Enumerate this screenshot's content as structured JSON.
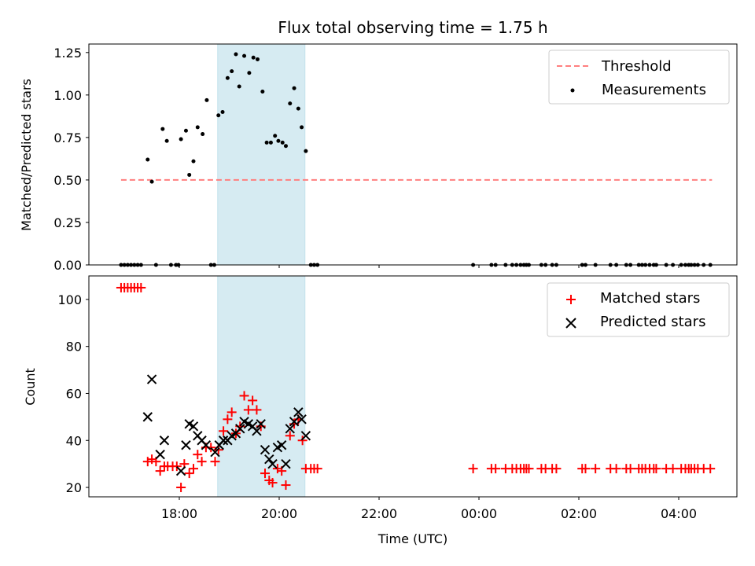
{
  "chart_data": [
    {
      "type": "scatter",
      "title": "Flux total observing time = 1.75 h",
      "ylabel": "Matched/Predicted stars",
      "xlabel": "",
      "ylim": [
        0,
        1.3
      ],
      "yticks": [
        "0.00",
        "0.25",
        "0.50",
        "0.75",
        "1.00",
        "1.25"
      ],
      "highlight_span": [
        "18:46",
        "20:31"
      ],
      "legend_position": "top-right",
      "threshold": {
        "name": "Threshold",
        "value": 0.5,
        "x_range": [
          "16:50",
          "04:40"
        ],
        "color": "#ff7f7f"
      },
      "series": [
        {
          "name": "Measurements",
          "color": "#000000",
          "points": [
            [
              "16:50",
              0
            ],
            [
              "16:54",
              0
            ],
            [
              "16:58",
              0
            ],
            [
              "17:02",
              0
            ],
            [
              "17:06",
              0
            ],
            [
              "17:10",
              0
            ],
            [
              "17:14",
              0
            ],
            [
              "17:22",
              0.62
            ],
            [
              "17:27",
              0.49
            ],
            [
              "17:40",
              0.8
            ],
            [
              "17:45",
              0.73
            ],
            [
              "18:02",
              0.74
            ],
            [
              "18:08",
              0.79
            ],
            [
              "18:12",
              0.53
            ],
            [
              "18:17",
              0.61
            ],
            [
              "18:22",
              0.81
            ],
            [
              "18:28",
              0.77
            ],
            [
              "18:33",
              0.97
            ],
            [
              "18:47",
              0.88
            ],
            [
              "18:52",
              0.9
            ],
            [
              "18:58",
              1.1
            ],
            [
              "19:03",
              1.14
            ],
            [
              "19:08",
              1.24
            ],
            [
              "19:12",
              1.05
            ],
            [
              "19:18",
              1.23
            ],
            [
              "19:24",
              1.13
            ],
            [
              "19:29",
              1.22
            ],
            [
              "19:34",
              1.21
            ],
            [
              "19:40",
              1.02
            ],
            [
              "19:45",
              0.72
            ],
            [
              "19:50",
              0.72
            ],
            [
              "19:55",
              0.76
            ],
            [
              "19:59",
              0.73
            ],
            [
              "20:04",
              0.72
            ],
            [
              "20:08",
              0.7
            ],
            [
              "20:13",
              0.95
            ],
            [
              "20:18",
              1.04
            ],
            [
              "20:23",
              0.92
            ],
            [
              "20:27",
              0.81
            ],
            [
              "20:32",
              0.67
            ],
            [
              "17:32",
              0
            ],
            [
              "17:50",
              0
            ],
            [
              "17:56",
              0
            ],
            [
              "17:59",
              0
            ],
            [
              "18:38",
              0
            ],
            [
              "18:42",
              0
            ],
            [
              "20:38",
              0
            ],
            [
              "20:42",
              0
            ],
            [
              "20:46",
              0
            ],
            [
              "23:53",
              0
            ],
            [
              "00:15",
              0
            ],
            [
              "00:20",
              0
            ],
            [
              "00:32",
              0
            ],
            [
              "00:40",
              0
            ],
            [
              "00:45",
              0
            ],
            [
              "00:50",
              0
            ],
            [
              "00:54",
              0
            ],
            [
              "00:57",
              0
            ],
            [
              "01:00",
              0
            ],
            [
              "01:15",
              0
            ],
            [
              "01:20",
              0
            ],
            [
              "01:28",
              0
            ],
            [
              "01:33",
              0
            ],
            [
              "02:04",
              0
            ],
            [
              "02:08",
              0
            ],
            [
              "02:20",
              0
            ],
            [
              "02:38",
              0
            ],
            [
              "02:45",
              0
            ],
            [
              "02:57",
              0
            ],
            [
              "03:02",
              0
            ],
            [
              "03:12",
              0
            ],
            [
              "03:16",
              0
            ],
            [
              "03:20",
              0
            ],
            [
              "03:25",
              0
            ],
            [
              "03:30",
              0
            ],
            [
              "03:33",
              0
            ],
            [
              "03:45",
              0
            ],
            [
              "03:53",
              0
            ],
            [
              "04:03",
              0
            ],
            [
              "04:08",
              0
            ],
            [
              "04:12",
              0
            ],
            [
              "04:15",
              0
            ],
            [
              "04:19",
              0
            ],
            [
              "04:23",
              0
            ],
            [
              "04:30",
              0
            ],
            [
              "04:38",
              0
            ]
          ]
        }
      ]
    },
    {
      "type": "scatter",
      "title": "",
      "ylabel": "Count",
      "xlabel": "Time (UTC)",
      "ylim": [
        16,
        110
      ],
      "yticks": [
        "20",
        "40",
        "60",
        "80",
        "100"
      ],
      "xticks": [
        "18:00",
        "20:00",
        "22:00",
        "00:00",
        "02:00",
        "04:00"
      ],
      "highlight_span": [
        "18:46",
        "20:31"
      ],
      "legend_position": "top-right",
      "series": [
        {
          "name": "Matched stars",
          "color": "#ff0000",
          "marker": "+",
          "points": [
            [
              "16:50",
              105
            ],
            [
              "16:54",
              105
            ],
            [
              "16:58",
              105
            ],
            [
              "17:02",
              105
            ],
            [
              "17:06",
              105
            ],
            [
              "17:10",
              105
            ],
            [
              "17:14",
              105
            ],
            [
              "17:22",
              31
            ],
            [
              "17:27",
              32
            ],
            [
              "17:32",
              31
            ],
            [
              "17:37",
              27
            ],
            [
              "17:42",
              29
            ],
            [
              "17:46",
              29
            ],
            [
              "17:52",
              29
            ],
            [
              "17:57",
              29
            ],
            [
              "18:02",
              20
            ],
            [
              "18:06",
              30
            ],
            [
              "18:12",
              26
            ],
            [
              "18:17",
              28
            ],
            [
              "18:22",
              34
            ],
            [
              "18:27",
              31
            ],
            [
              "18:32",
              37
            ],
            [
              "18:38",
              37
            ],
            [
              "18:43",
              31
            ],
            [
              "18:47",
              36
            ],
            [
              "18:53",
              44
            ],
            [
              "18:58",
              49
            ],
            [
              "19:03",
              52
            ],
            [
              "19:08",
              43
            ],
            [
              "19:13",
              46
            ],
            [
              "19:18",
              59
            ],
            [
              "19:23",
              53
            ],
            [
              "19:28",
              57
            ],
            [
              "19:33",
              53
            ],
            [
              "19:38",
              46
            ],
            [
              "19:43",
              26
            ],
            [
              "19:48",
              23
            ],
            [
              "19:52",
              22
            ],
            [
              "19:58",
              28
            ],
            [
              "20:03",
              27
            ],
            [
              "20:08",
              21
            ],
            [
              "20:13",
              42
            ],
            [
              "20:18",
              47
            ],
            [
              "20:23",
              49
            ],
            [
              "20:28",
              40
            ],
            [
              "20:32",
              28
            ],
            [
              "20:38",
              28
            ],
            [
              "20:42",
              28
            ],
            [
              "20:46",
              28
            ],
            [
              "23:53",
              28
            ],
            [
              "00:15",
              28
            ],
            [
              "00:20",
              28
            ],
            [
              "00:32",
              28
            ],
            [
              "00:40",
              28
            ],
            [
              "00:45",
              28
            ],
            [
              "00:50",
              28
            ],
            [
              "00:54",
              28
            ],
            [
              "00:57",
              28
            ],
            [
              "01:00",
              28
            ],
            [
              "01:15",
              28
            ],
            [
              "01:20",
              28
            ],
            [
              "01:28",
              28
            ],
            [
              "01:33",
              28
            ],
            [
              "02:04",
              28
            ],
            [
              "02:08",
              28
            ],
            [
              "02:20",
              28
            ],
            [
              "02:38",
              28
            ],
            [
              "02:45",
              28
            ],
            [
              "02:57",
              28
            ],
            [
              "03:02",
              28
            ],
            [
              "03:12",
              28
            ],
            [
              "03:16",
              28
            ],
            [
              "03:20",
              28
            ],
            [
              "03:25",
              28
            ],
            [
              "03:30",
              28
            ],
            [
              "03:33",
              28
            ],
            [
              "03:45",
              28
            ],
            [
              "03:53",
              28
            ],
            [
              "04:03",
              28
            ],
            [
              "04:08",
              28
            ],
            [
              "04:12",
              28
            ],
            [
              "04:15",
              28
            ],
            [
              "04:19",
              28
            ],
            [
              "04:23",
              28
            ],
            [
              "04:30",
              28
            ],
            [
              "04:38",
              28
            ]
          ]
        },
        {
          "name": "Predicted stars",
          "color": "#000000",
          "marker": "x",
          "points": [
            [
              "17:22",
              50
            ],
            [
              "17:27",
              66
            ],
            [
              "17:37",
              34
            ],
            [
              "17:42",
              40
            ],
            [
              "18:02",
              27
            ],
            [
              "18:08",
              38
            ],
            [
              "18:12",
              47
            ],
            [
              "18:17",
              46
            ],
            [
              "18:22",
              42
            ],
            [
              "18:27",
              40
            ],
            [
              "18:32",
              38
            ],
            [
              "18:43",
              35
            ],
            [
              "18:48",
              38
            ],
            [
              "18:53",
              40
            ],
            [
              "18:58",
              40
            ],
            [
              "19:03",
              42
            ],
            [
              "19:08",
              43
            ],
            [
              "19:13",
              45
            ],
            [
              "19:18",
              48
            ],
            [
              "19:23",
              47
            ],
            [
              "19:28",
              46
            ],
            [
              "19:33",
              44
            ],
            [
              "19:38",
              47
            ],
            [
              "19:43",
              36
            ],
            [
              "19:48",
              32
            ],
            [
              "19:52",
              30
            ],
            [
              "19:58",
              37
            ],
            [
              "20:03",
              38
            ],
            [
              "20:08",
              30
            ],
            [
              "20:13",
              45
            ],
            [
              "20:18",
              48
            ],
            [
              "20:23",
              52
            ],
            [
              "20:27",
              49
            ],
            [
              "20:32",
              42
            ]
          ]
        }
      ]
    }
  ]
}
